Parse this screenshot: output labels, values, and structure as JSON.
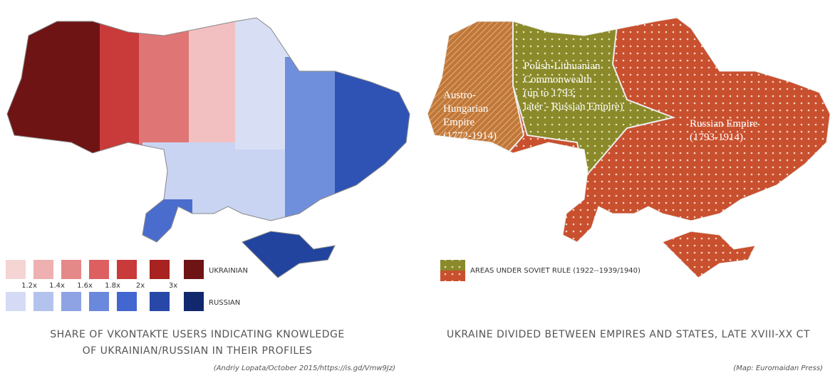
{
  "left_map": {
    "legend": {
      "scale_labels": [
        "1.2x",
        "1.4x",
        "1.6x",
        "1.8x",
        "2x",
        "3x"
      ],
      "ukrainian_label": "UKRAINIAN",
      "russian_label": "RUSSIAN"
    },
    "caption": [
      "SHARE OF VKONTAKTE USERS INDICATING KNOWLEDGE",
      "OF UKRAINIAN/RUSSIAN IN THEIR PROFILES"
    ],
    "source": "(Andriy Lopata/October 2015/https://is.gd/Vmw9Jz)"
  },
  "right_map": {
    "regions": [
      {
        "label": [
          "Austro-",
          "Hungarian",
          "Empire",
          "(1772-1914)"
        ]
      },
      {
        "label": [
          "Polish-Lithuanian",
          "Commonwealth",
          "(up to 1793;",
          "later - Russian Empire)"
        ]
      },
      {
        "label": [
          "Russian Empire",
          "(1793-1914)"
        ]
      }
    ],
    "legend": "AREAS UNDER SOVIET RULE (1922--1939/1940)",
    "caption": "UKRAINE DIVIDED BETWEEN EMPIRES AND STATES, LATE XVIII-XX CT",
    "source": "(Map:  Euromaidan Press)"
  }
}
